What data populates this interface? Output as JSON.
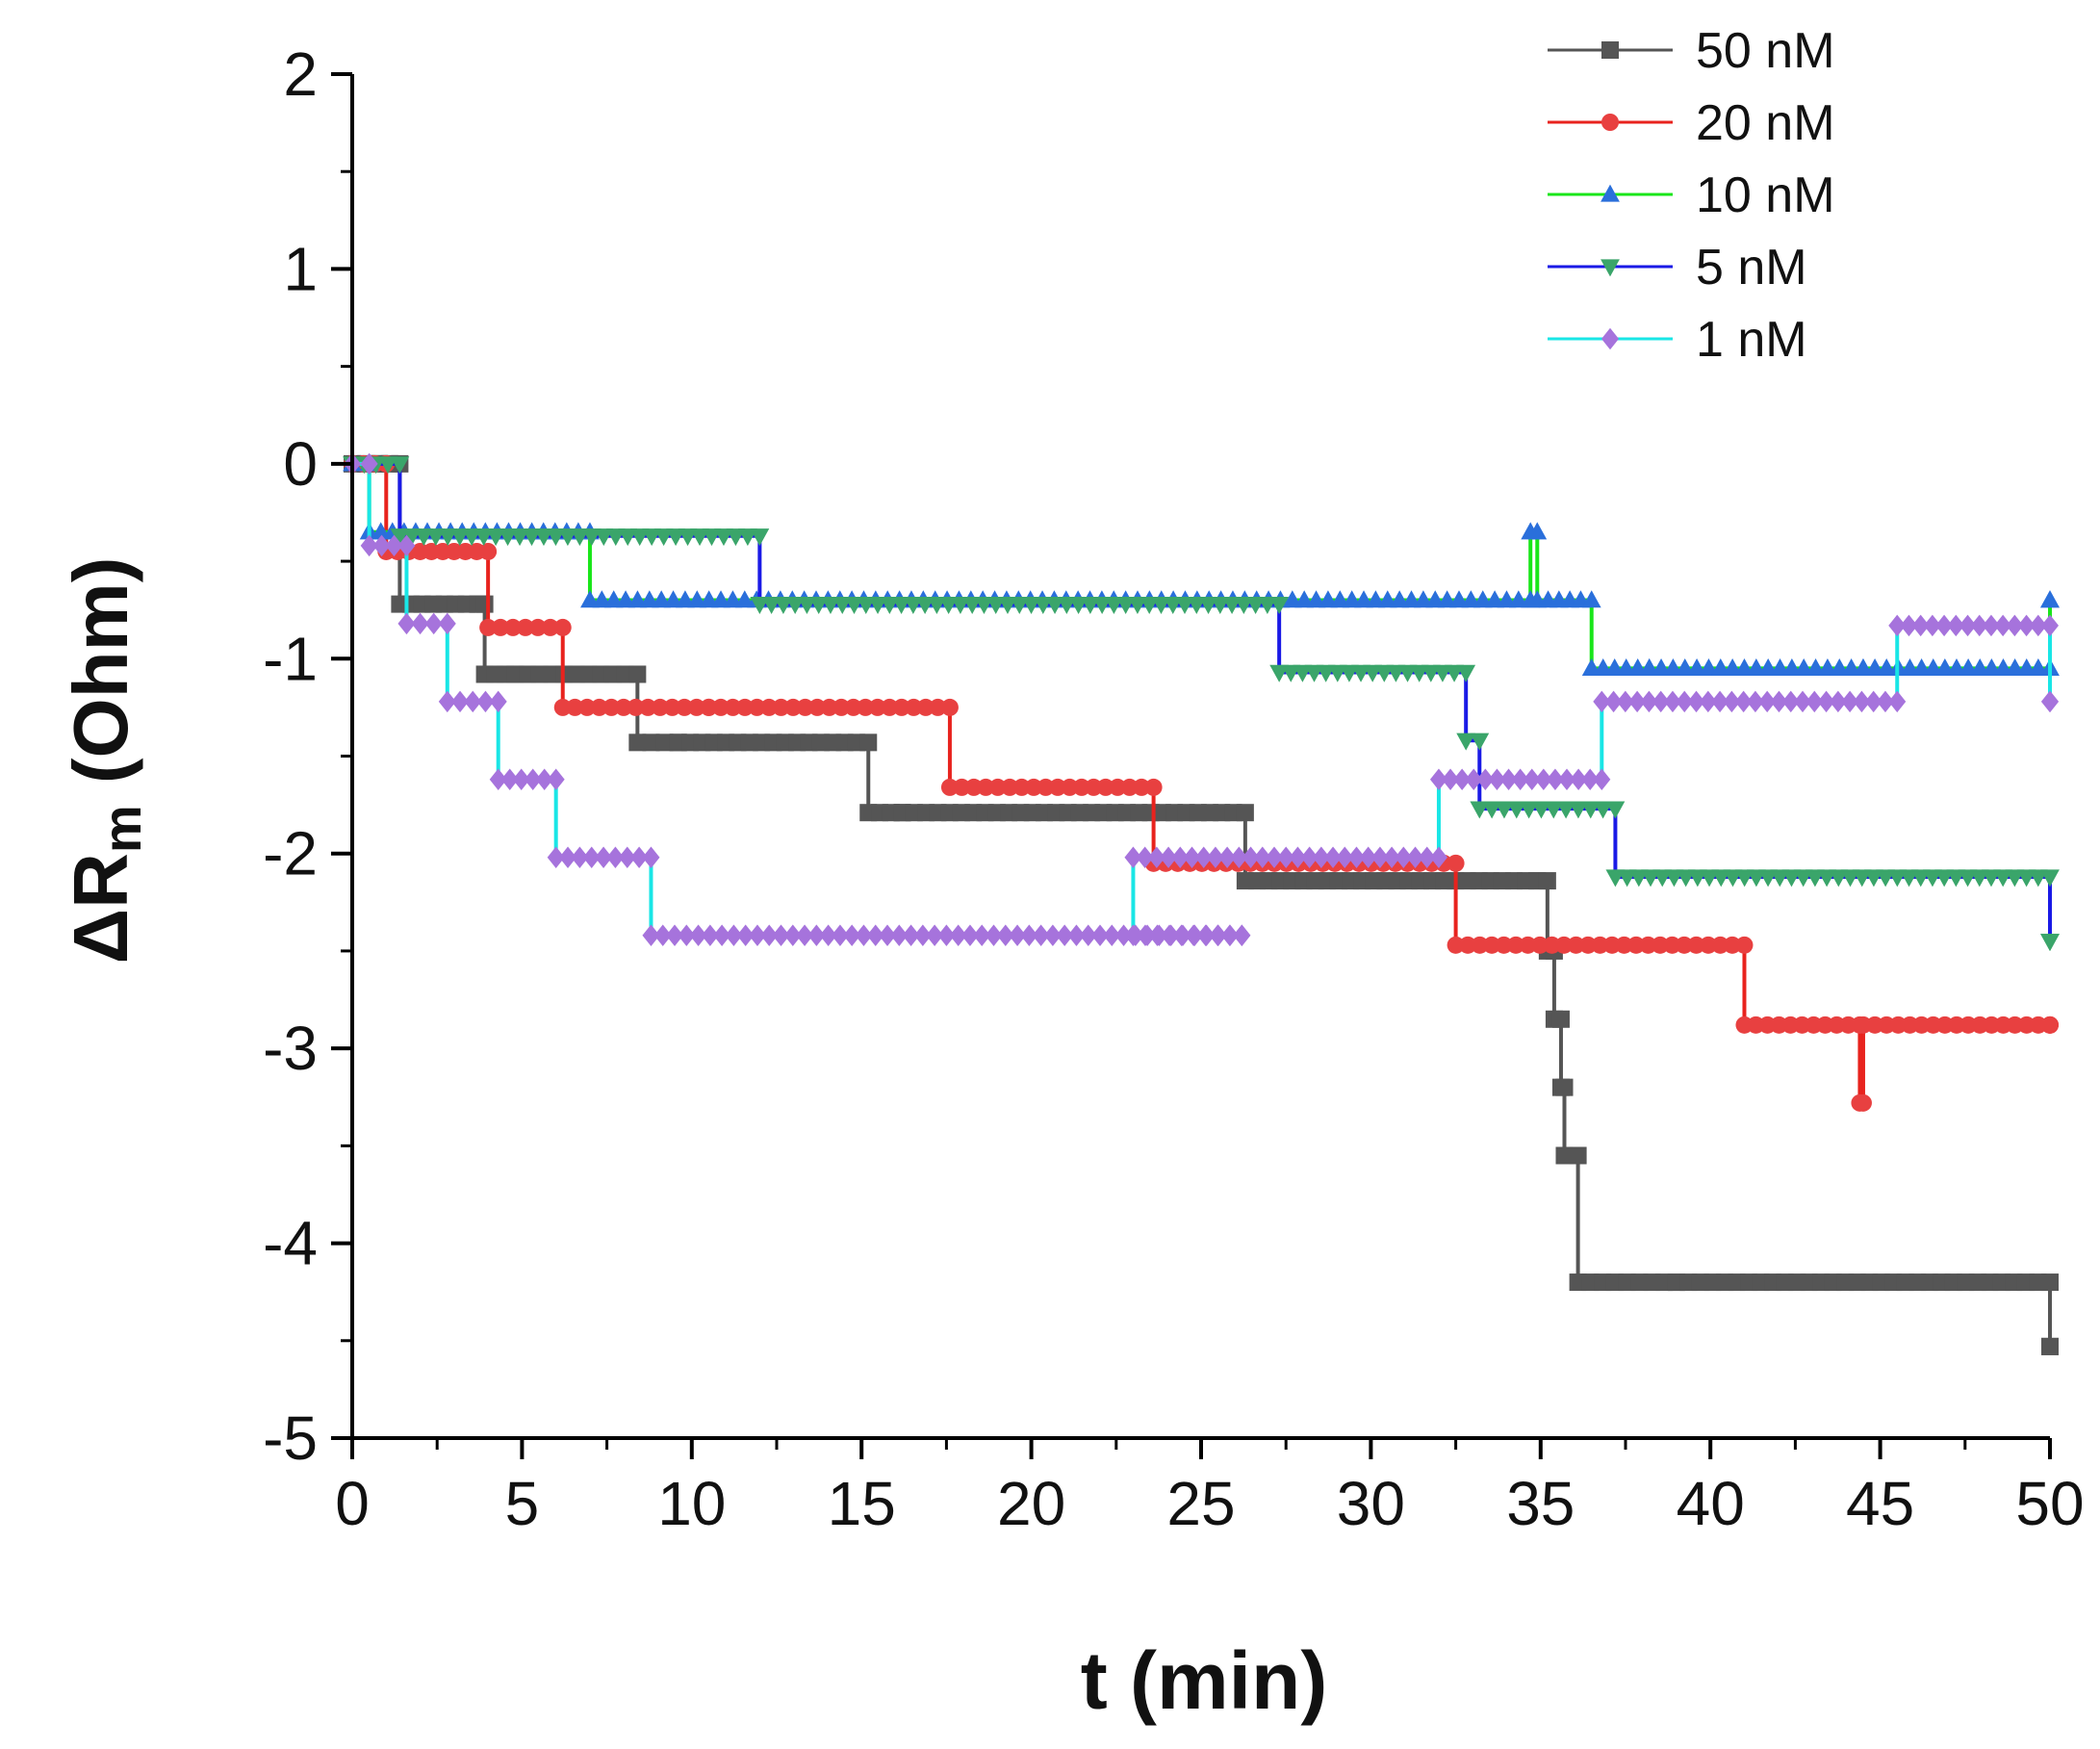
{
  "chart_data": {
    "type": "line",
    "title": "",
    "xlabel": "t (min)",
    "ylabel_main": "ΔR",
    "ylabel_sub": "m",
    "ylabel_rest": " (Ohm)",
    "xlim": [
      0,
      50
    ],
    "ylim": [
      -5,
      2
    ],
    "xticks": [
      0,
      5,
      10,
      15,
      20,
      25,
      30,
      35,
      40,
      45,
      50
    ],
    "yticks": [
      -5,
      -4,
      -3,
      -2,
      -1,
      0,
      1,
      2
    ],
    "grid": false,
    "legend_position": "top-right",
    "series": [
      {
        "name": "50 nM",
        "line_color": "#555555",
        "marker_color": "#555555",
        "marker": "square",
        "x": [
          0,
          0.8,
          1.4,
          3.7,
          3.9,
          4.8,
          8.4,
          9.6,
          15.2,
          16.2,
          26.3,
          34.9,
          35.2,
          35.4,
          35.6,
          35.7,
          36.1,
          39.0,
          50
        ],
        "y": [
          0,
          0,
          -0.72,
          -0.72,
          -1.08,
          -1.08,
          -1.43,
          -1.43,
          -1.79,
          -1.79,
          -2.14,
          -2.14,
          -2.5,
          -2.85,
          -3.2,
          -3.55,
          -4.2,
          -4.2,
          -4.53
        ]
      },
      {
        "name": "20 nM",
        "line_color": "#e8231e",
        "marker_color": "#e84040",
        "marker": "circle",
        "x": [
          0,
          1.0,
          4.0,
          6.2,
          10.5,
          17.6,
          23.6,
          32.5,
          41.0,
          44.4,
          44.5,
          50
        ],
        "y": [
          0,
          -0.45,
          -0.84,
          -1.25,
          -1.25,
          -1.66,
          -2.05,
          -2.47,
          -2.88,
          -3.28,
          -2.88,
          -2.88
        ]
      },
      {
        "name": "10 nM",
        "line_color": "#19e619",
        "marker_color": "#2a6fdb",
        "marker": "triangle-up",
        "x": [
          0,
          0.5,
          7.0,
          34.7,
          34.9,
          36.5,
          38.2,
          44.5,
          50
        ],
        "y": [
          0,
          -0.35,
          -0.7,
          -0.35,
          -0.7,
          -1.05,
          -1.05,
          -1.05,
          -0.7
        ]
      },
      {
        "name": "5 nM",
        "line_color": "#1a1ae6",
        "marker_color": "#3aa56a",
        "marker": "triangle-down",
        "x": [
          0,
          1.4,
          12.0,
          27.3,
          32.8,
          33.2,
          37.2,
          50
        ],
        "y": [
          0,
          -0.37,
          -0.72,
          -1.07,
          -1.42,
          -1.77,
          -2.12,
          -2.45
        ]
      },
      {
        "name": "1 nM",
        "line_color": "#19e6e6",
        "marker_color": "#a673dc",
        "marker": "diamond",
        "x": [
          0,
          0.5,
          1.6,
          2.8,
          4.3,
          6.0,
          8.8,
          26.2,
          23.0,
          32.0,
          36.8,
          45.5,
          50
        ],
        "y": [
          0,
          -0.42,
          -0.82,
          -1.22,
          -1.62,
          -2.02,
          -2.42,
          -2.42,
          -2.02,
          -1.62,
          -1.22,
          -0.83,
          -1.22
        ]
      }
    ]
  }
}
